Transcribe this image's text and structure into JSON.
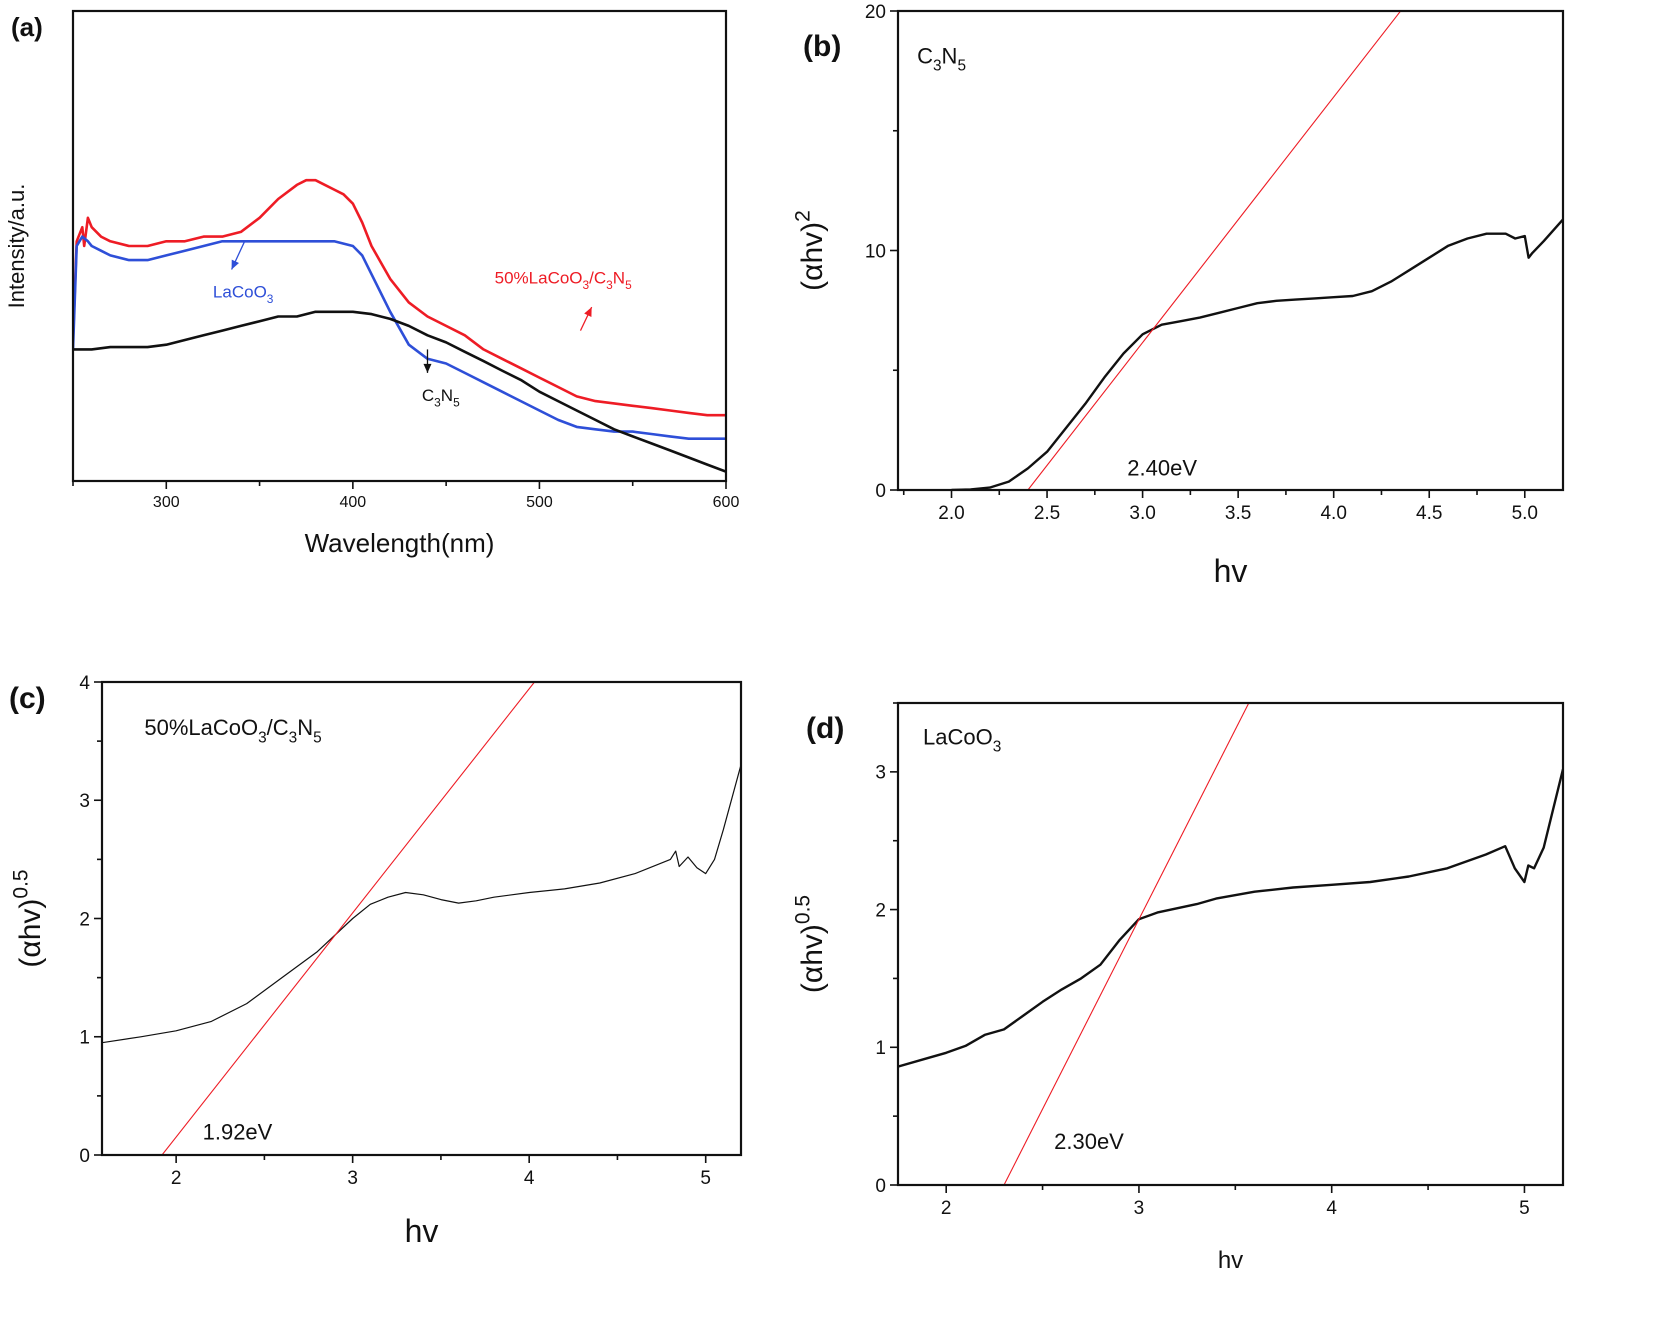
{
  "figure": {
    "panels": [
      {
        "letter": "(a)",
        "annotations": [
          "LaCoO₃",
          "50%LaCoO₃/C₃N₅",
          "C₃N₅"
        ]
      },
      {
        "letter": "(b)",
        "annotations": [
          "C₃N₅",
          "2.40eV"
        ]
      },
      {
        "letter": "(c)",
        "annotations": [
          "50%LaCoO₃/C₃N₅",
          "1.92eV"
        ]
      },
      {
        "letter": "(d)",
        "annotations": [
          "LaCoO₃",
          "2.30eV"
        ]
      }
    ]
  },
  "chart_data": [
    {
      "type": "line",
      "panel": "(a)",
      "xlabel": "Wavelength(nm)",
      "ylabel": "Intensity/a.u.",
      "xlim": [
        250,
        600
      ],
      "ylim": [
        0,
        1
      ],
      "xticks": [
        300,
        400,
        500,
        600
      ],
      "xtick_labels": [
        "300",
        "400",
        "500",
        "600"
      ],
      "yticks": [],
      "ytick_labels": [],
      "series": [
        {
          "name": "50%LaCoO₃/C₃N₅",
          "color": "#ee1c25",
          "x": [
            250,
            252,
            255,
            256,
            258,
            260,
            265,
            270,
            280,
            290,
            300,
            310,
            320,
            330,
            340,
            350,
            360,
            370,
            375,
            380,
            385,
            390,
            395,
            400,
            405,
            410,
            420,
            430,
            440,
            450,
            460,
            470,
            480,
            490,
            500,
            510,
            520,
            530,
            540,
            550,
            560,
            570,
            580,
            590,
            600
          ],
          "y": [
            0.3,
            0.51,
            0.54,
            0.5,
            0.56,
            0.54,
            0.52,
            0.51,
            0.5,
            0.5,
            0.51,
            0.51,
            0.52,
            0.52,
            0.53,
            0.56,
            0.6,
            0.63,
            0.64,
            0.64,
            0.63,
            0.62,
            0.61,
            0.59,
            0.55,
            0.5,
            0.43,
            0.38,
            0.35,
            0.33,
            0.31,
            0.28,
            0.26,
            0.24,
            0.22,
            0.2,
            0.18,
            0.17,
            0.165,
            0.16,
            0.155,
            0.15,
            0.145,
            0.14,
            0.14
          ]
        },
        {
          "name": "LaCoO₃",
          "color": "#2e4fd8",
          "x": [
            250,
            252,
            255,
            258,
            260,
            265,
            270,
            280,
            290,
            300,
            310,
            320,
            330,
            340,
            350,
            360,
            370,
            380,
            390,
            400,
            405,
            410,
            420,
            430,
            440,
            450,
            460,
            470,
            480,
            490,
            500,
            510,
            520,
            530,
            540,
            550,
            560,
            570,
            580,
            590,
            600
          ],
          "y": [
            0.28,
            0.5,
            0.52,
            0.51,
            0.5,
            0.49,
            0.48,
            0.47,
            0.47,
            0.48,
            0.49,
            0.5,
            0.51,
            0.51,
            0.51,
            0.51,
            0.51,
            0.51,
            0.51,
            0.5,
            0.48,
            0.44,
            0.36,
            0.29,
            0.26,
            0.25,
            0.23,
            0.21,
            0.19,
            0.17,
            0.15,
            0.13,
            0.115,
            0.11,
            0.105,
            0.105,
            0.1,
            0.095,
            0.09,
            0.09,
            0.09
          ]
        },
        {
          "name": "C₃N₅",
          "color": "#111111",
          "x": [
            250,
            260,
            270,
            280,
            290,
            300,
            310,
            320,
            330,
            340,
            350,
            360,
            370,
            380,
            390,
            400,
            410,
            420,
            430,
            440,
            450,
            460,
            470,
            480,
            490,
            500,
            510,
            520,
            530,
            540,
            550,
            560,
            570,
            580,
            590,
            600
          ],
          "y": [
            0.28,
            0.28,
            0.285,
            0.285,
            0.285,
            0.29,
            0.3,
            0.31,
            0.32,
            0.33,
            0.34,
            0.35,
            0.35,
            0.36,
            0.36,
            0.36,
            0.355,
            0.345,
            0.33,
            0.31,
            0.295,
            0.275,
            0.255,
            0.235,
            0.215,
            0.19,
            0.17,
            0.15,
            0.13,
            0.11,
            0.095,
            0.08,
            0.065,
            0.05,
            0.035,
            0.02
          ]
        }
      ],
      "annotations": [
        {
          "text": "LaCoO₃",
          "x": 325,
          "y": 0.39,
          "color": "#2e4fd8",
          "arrow_from": [
            342,
            0.51
          ],
          "arrow_to": [
            335,
            0.45
          ]
        },
        {
          "text": "50%LaCoO₃/C₃N₅",
          "x": 476,
          "y": 0.42,
          "color": "#ee1c25",
          "arrow_from": [
            522,
            0.32
          ],
          "arrow_to": [
            528,
            0.37
          ]
        },
        {
          "text": "C₃N₅",
          "x": 437,
          "y": 0.17,
          "color": "#111111",
          "arrow_from": [
            440,
            0.28
          ],
          "arrow_to": [
            440,
            0.23
          ]
        }
      ]
    },
    {
      "type": "line",
      "panel": "(b)",
      "xlabel": "hv",
      "ylabel": "(αhv)²",
      "xlim": [
        1.72,
        5.2
      ],
      "ylim": [
        0,
        20
      ],
      "xticks": [
        2.0,
        2.5,
        3.0,
        3.5,
        4.0,
        4.5,
        5.0
      ],
      "xtick_labels": [
        "2.0",
        "2.5",
        "3.0",
        "3.5",
        "4.0",
        "4.5",
        "5.0"
      ],
      "yticks": [
        0,
        10,
        20
      ],
      "ytick_labels": [
        "0",
        "10",
        "20"
      ],
      "series": [
        {
          "name": "",
          "color": "#111111",
          "x": [
            2.0,
            2.1,
            2.2,
            2.3,
            2.4,
            2.5,
            2.6,
            2.7,
            2.8,
            2.9,
            3.0,
            3.1,
            3.2,
            3.3,
            3.4,
            3.5,
            3.6,
            3.7,
            3.8,
            3.9,
            4.0,
            4.1,
            4.2,
            4.3,
            4.4,
            4.5,
            4.6,
            4.7,
            4.8,
            4.9,
            4.95,
            5.0,
            5.02,
            5.04,
            5.1,
            5.2
          ],
          "y": [
            0,
            0.02,
            0.1,
            0.35,
            0.9,
            1.6,
            2.6,
            3.6,
            4.7,
            5.7,
            6.5,
            6.9,
            7.05,
            7.2,
            7.4,
            7.6,
            7.8,
            7.9,
            7.95,
            8.0,
            8.05,
            8.1,
            8.3,
            8.7,
            9.2,
            9.7,
            10.2,
            10.5,
            10.7,
            10.7,
            10.5,
            10.6,
            9.7,
            9.9,
            10.4,
            11.3
          ]
        },
        {
          "name": "",
          "color": "#ee1c25",
          "x": [
            2.4,
            4.35
          ],
          "y": [
            0,
            20
          ]
        }
      ],
      "annotations": [
        {
          "text": "C₃N₅",
          "x": 1.82,
          "y": 17.8
        },
        {
          "text": "2.40eV",
          "x": 2.92,
          "y": 0.6
        }
      ]
    },
    {
      "type": "line",
      "panel": "(c)",
      "xlabel": "hv",
      "ylabel": "(αhv)^0.5",
      "xlim": [
        1.58,
        5.2
      ],
      "ylim": [
        0,
        4
      ],
      "xticks": [
        2,
        3,
        4,
        5
      ],
      "xtick_labels": [
        "2",
        "3",
        "4",
        "5"
      ],
      "yticks": [
        0,
        1,
        2,
        3,
        4
      ],
      "ytick_labels": [
        "0",
        "1",
        "2",
        "3",
        "4"
      ],
      "series": [
        {
          "name": "",
          "color": "#111111",
          "x": [
            1.58,
            1.8,
            2.0,
            2.2,
            2.4,
            2.6,
            2.8,
            3.0,
            3.1,
            3.2,
            3.3,
            3.4,
            3.5,
            3.6,
            3.7,
            3.8,
            4.0,
            4.2,
            4.4,
            4.6,
            4.8,
            4.83,
            4.85,
            4.9,
            4.95,
            5.0,
            5.05,
            5.1,
            5.2
          ],
          "y": [
            0.95,
            1.0,
            1.05,
            1.13,
            1.28,
            1.5,
            1.72,
            2.0,
            2.12,
            2.18,
            2.22,
            2.2,
            2.16,
            2.13,
            2.15,
            2.18,
            2.22,
            2.25,
            2.3,
            2.38,
            2.5,
            2.57,
            2.44,
            2.52,
            2.43,
            2.38,
            2.5,
            2.75,
            3.3
          ]
        },
        {
          "name": "",
          "color": "#ee1c25",
          "x": [
            1.92,
            4.03
          ],
          "y": [
            0,
            4
          ]
        }
      ],
      "annotations": [
        {
          "text": "50%LaCoO₃/C₃N₅",
          "x": 1.82,
          "y": 3.55
        },
        {
          "text": "1.92eV",
          "x": 2.15,
          "y": 0.13
        }
      ]
    },
    {
      "type": "line",
      "panel": "(d)",
      "xlabel": "hv",
      "ylabel": "(αhv)^0.5",
      "xlim": [
        1.75,
        5.2
      ],
      "ylim": [
        0,
        3.5
      ],
      "xticks": [
        2,
        3,
        4,
        5
      ],
      "xtick_labels": [
        "2",
        "3",
        "4",
        "5"
      ],
      "yticks": [
        0,
        1,
        2,
        3
      ],
      "ytick_labels": [
        "0",
        "1",
        "2",
        "3"
      ],
      "series": [
        {
          "name": "",
          "color": "#111111",
          "x": [
            1.75,
            1.9,
            2.0,
            2.1,
            2.2,
            2.3,
            2.4,
            2.5,
            2.6,
            2.7,
            2.8,
            2.9,
            3.0,
            3.1,
            3.2,
            3.3,
            3.4,
            3.6,
            3.8,
            4.0,
            4.2,
            4.4,
            4.6,
            4.8,
            4.9,
            4.95,
            5.0,
            5.02,
            5.05,
            5.1,
            5.2
          ],
          "y": [
            0.86,
            0.92,
            0.96,
            1.01,
            1.09,
            1.13,
            1.23,
            1.33,
            1.42,
            1.5,
            1.6,
            1.78,
            1.93,
            1.98,
            2.01,
            2.04,
            2.08,
            2.13,
            2.16,
            2.18,
            2.2,
            2.24,
            2.3,
            2.4,
            2.46,
            2.3,
            2.2,
            2.32,
            2.3,
            2.45,
            3.02
          ]
        },
        {
          "name": "",
          "color": "#ee1c25",
          "x": [
            2.3,
            3.57
          ],
          "y": [
            0,
            3.5
          ]
        }
      ],
      "annotations": [
        {
          "text": "LaCoO₃",
          "x": 1.88,
          "y": 3.2
        },
        {
          "text": "2.30eV",
          "x": 2.56,
          "y": 0.26
        }
      ]
    }
  ]
}
